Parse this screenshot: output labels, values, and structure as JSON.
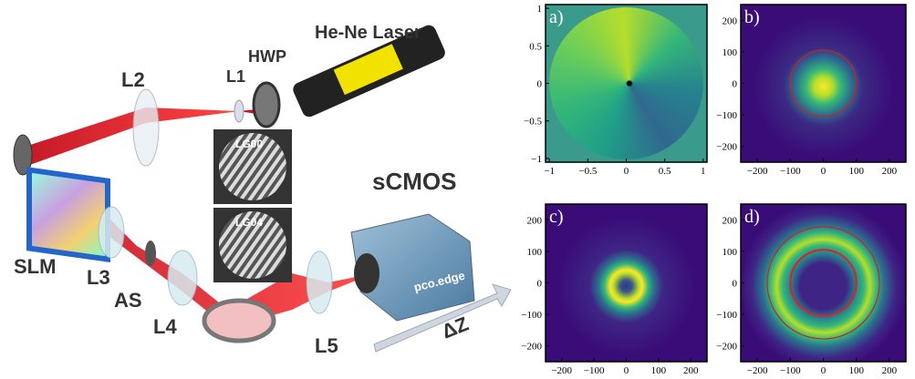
{
  "setup": {
    "labels": {
      "laser": "He-Ne Laser",
      "hwp": "HWP",
      "l1": "L1",
      "l2": "L2",
      "slm": "SLM",
      "l3": "L3",
      "as": "AS",
      "l4": "L4",
      "l5": "L5",
      "camera": "sCMOS",
      "camera_brand": "pco.edge",
      "delta_z": "ΔZ",
      "hologram_1": "LG00",
      "hologram_2": "LG04"
    }
  },
  "panels": [
    {
      "label": "a)",
      "kind": "phase",
      "xlim": [
        -1.05,
        1.05
      ],
      "ylim": [
        -1.05,
        1.05
      ],
      "xticks": [
        {
          "value": -1,
          "label": "−1"
        },
        {
          "value": -0.5,
          "label": "−0.5"
        },
        0,
        0.5,
        1
      ],
      "yticks": [
        {
          "value": -1,
          "label": "−1"
        },
        {
          "value": -0.5,
          "label": "−0.5"
        },
        0,
        0.5,
        1
      ]
    },
    {
      "label": "b)",
      "kind": "spot",
      "xlim": [
        -250,
        250
      ],
      "ylim": [
        -250,
        250
      ],
      "xticks": [
        {
          "value": -200,
          "label": "−200"
        },
        {
          "value": -100,
          "label": "−100"
        },
        0,
        100,
        200
      ],
      "yticks": [
        {
          "value": -200,
          "label": "−200"
        },
        {
          "value": -100,
          "label": "−100"
        },
        0,
        100,
        200
      ]
    },
    {
      "label": "c)",
      "kind": "ring",
      "xlim": [
        -250,
        250
      ],
      "ylim": [
        -250,
        250
      ],
      "xticks": [
        {
          "value": -200,
          "label": "−200"
        },
        {
          "value": -100,
          "label": "−100"
        },
        0,
        100,
        200
      ],
      "yticks": [
        {
          "value": -200,
          "label": "−200"
        },
        {
          "value": -100,
          "label": "−100"
        },
        0,
        100,
        200
      ]
    },
    {
      "label": "d)",
      "kind": "bigring",
      "xlim": [
        -250,
        250
      ],
      "ylim": [
        -250,
        250
      ],
      "xticks": [
        {
          "value": -200,
          "label": "−200"
        },
        {
          "value": -100,
          "label": "−100"
        },
        0,
        100,
        200
      ],
      "yticks": [
        {
          "value": -200,
          "label": "−200"
        },
        {
          "value": -100,
          "label": "−100"
        },
        0,
        100,
        200
      ]
    }
  ]
}
